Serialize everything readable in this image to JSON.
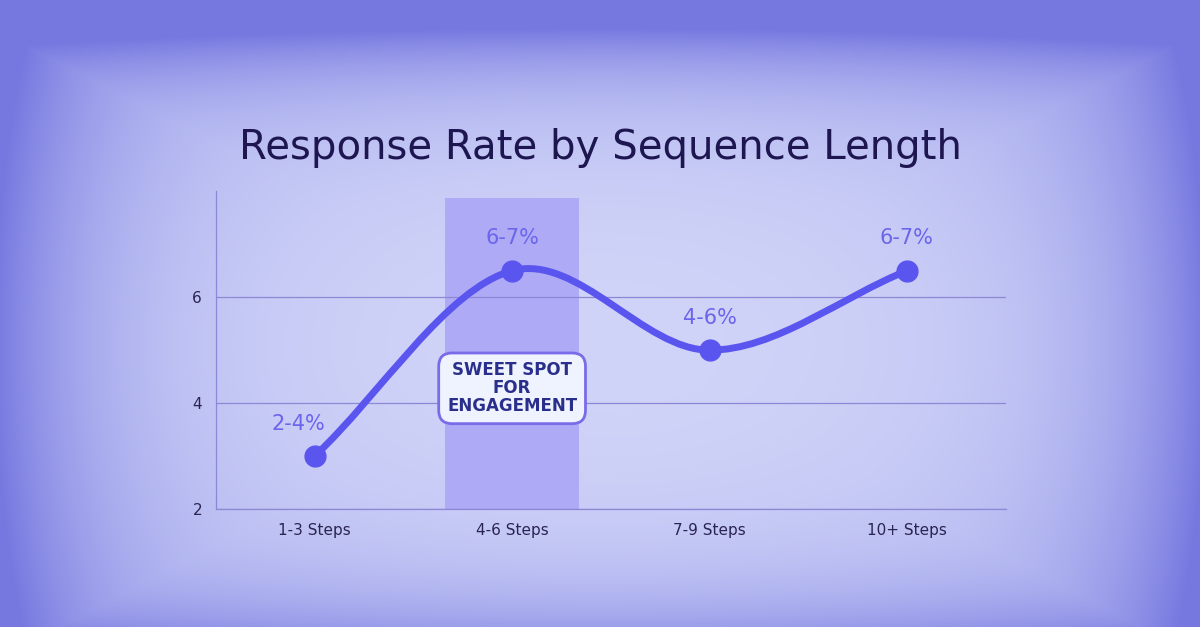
{
  "chart_data": {
    "type": "line",
    "title": "Response Rate by Sequence Length",
    "categories": [
      "1-3 Steps",
      "4-6 Steps",
      "7-9 Steps",
      "10+ Steps"
    ],
    "values": [
      3,
      6.5,
      5,
      6.5
    ],
    "value_labels": [
      "2-4%",
      "6-7%",
      "4-6%",
      "6-7%"
    ],
    "data_labels": true,
    "color": "#5b55ef",
    "marker": "o",
    "line_style": "solid",
    "ylim": [
      2,
      8
    ],
    "yticks": [
      2,
      4,
      6
    ],
    "grid": true,
    "annotations": [
      {
        "text": "SWEET SPOT FOR ENGAGEMENT",
        "category": "4-6 Steps"
      }
    ]
  }
}
